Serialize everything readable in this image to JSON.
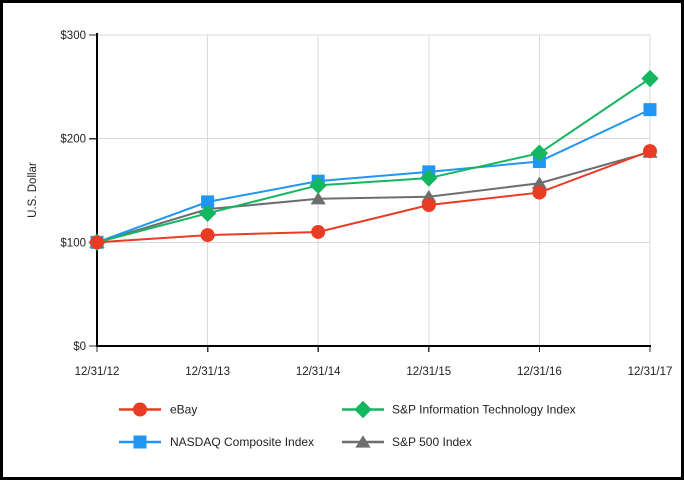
{
  "chart_data": {
    "type": "line",
    "title": "",
    "xlabel": "",
    "ylabel": "U.S. Dollar",
    "categories": [
      "12/31/12",
      "12/31/13",
      "12/31/14",
      "12/31/15",
      "12/31/16",
      "12/31/17"
    ],
    "ylim": [
      0,
      300
    ],
    "y_ticks": [
      {
        "value": 0,
        "label": "$0"
      },
      {
        "value": 100,
        "label": "$100"
      },
      {
        "value": 200,
        "label": "$200"
      },
      {
        "value": 300,
        "label": "$300"
      }
    ],
    "grid": true,
    "legend_position": "bottom",
    "legend_columns": [
      [
        0,
        1
      ],
      [
        2,
        3
      ]
    ],
    "series": [
      {
        "name": "eBay",
        "marker": "circle",
        "color": "#ea3b24",
        "values": [
          100,
          107,
          110,
          136,
          148,
          188
        ]
      },
      {
        "name": "NASDAQ Composite Index",
        "marker": "square",
        "color": "#2196f3",
        "values": [
          100,
          139,
          159,
          168,
          178,
          228
        ]
      },
      {
        "name": "S&P Information Technology Index",
        "marker": "diamond",
        "color": "#14b75f",
        "values": [
          100,
          128,
          155,
          162,
          186,
          258
        ]
      },
      {
        "name": "S&P 500 Index",
        "marker": "triangle",
        "color": "#6e6e6e",
        "values": [
          100,
          132,
          142,
          144,
          157,
          187
        ]
      }
    ],
    "colors": {
      "axis": "#000000",
      "grid": "#d9d9d9",
      "tick": "#333333",
      "text": "#222222",
      "frame": "#000000",
      "background": "#ffffff"
    }
  }
}
